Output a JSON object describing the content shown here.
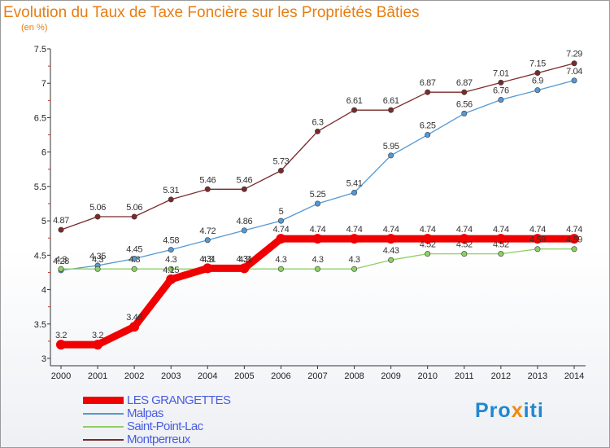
{
  "chart_data": {
    "type": "line",
    "title": "Evolution du Taux de Taxe Foncière sur les Propriétés Bâties",
    "subtitle": "(en %)",
    "xlabel": "",
    "ylabel": "",
    "ylim": [
      3,
      7.5
    ],
    "y_ticks": [
      "3",
      "3.5",
      "4",
      "4.5",
      "5",
      "5.5",
      "6",
      "6.5",
      "7",
      "7.5"
    ],
    "categories": [
      "2000",
      "2001",
      "2002",
      "2003",
      "2004",
      "2005",
      "2006",
      "2007",
      "2008",
      "2009",
      "2010",
      "2011",
      "2012",
      "2013",
      "2014"
    ],
    "series": [
      {
        "name": "Montperreux",
        "color": "#7a2a2a",
        "values": [
          4.87,
          5.06,
          5.06,
          5.31,
          5.46,
          5.46,
          5.73,
          6.3,
          6.61,
          6.61,
          6.87,
          6.87,
          7.01,
          7.15,
          7.29
        ]
      },
      {
        "name": "Malpas",
        "color": "#5598d2",
        "values": [
          4.28,
          4.35,
          4.45,
          4.58,
          4.72,
          4.86,
          5.0,
          5.25,
          5.41,
          5.95,
          6.25,
          6.56,
          6.76,
          6.9,
          7.04
        ]
      },
      {
        "name": "Saint-Point-Lac",
        "color": "#8ed064",
        "values": [
          4.3,
          4.3,
          4.3,
          4.3,
          4.3,
          4.3,
          4.3,
          4.3,
          4.3,
          4.43,
          4.52,
          4.52,
          4.52,
          4.59,
          4.59
        ]
      },
      {
        "name": "LES GRANGETTES",
        "color": "#f00000",
        "values": [
          3.2,
          3.2,
          3.46,
          4.15,
          4.31,
          4.31,
          4.74,
          4.74,
          4.74,
          4.74,
          4.74,
          4.74,
          4.74,
          4.74,
          4.74
        ]
      }
    ],
    "data_labels": {
      "Montperreux": [
        "4.87",
        "5.06",
        "5.06",
        "5.31",
        "5.46",
        "5.46",
        "5.73",
        "6.3",
        "6.61",
        "6.61",
        "6.87",
        "6.87",
        "7.01",
        "7.15",
        "7.29"
      ],
      "Malpas": [
        "4.28",
        "4.35",
        "4.45",
        "4.58",
        "4.72",
        "4.86",
        "5",
        "5.25",
        "5.41",
        "5.95",
        "6.25",
        "6.56",
        "6.76",
        "6.9",
        "7.04"
      ],
      "Saint-Point-Lac": [
        "4.3",
        "4.3",
        "4.3",
        "4.3",
        "4.3",
        "4.3",
        "4.3",
        "4.3",
        "4.3",
        "4.43",
        "4.52",
        "4.52",
        "4.52",
        "4.59",
        "4.59"
      ],
      "LES GRANGETTES": [
        "3.2",
        "3.2",
        "3.46",
        "4.15",
        "4.31",
        "4.31",
        "4.74",
        "4.74",
        "4.74",
        "4.74",
        "4.74",
        "4.74",
        "4.74",
        "4.74",
        "4.74"
      ]
    },
    "legend": [
      {
        "label": "LES GRANGETTES",
        "color": "#f00000",
        "thick": true
      },
      {
        "label": "Malpas",
        "color": "#5598d2",
        "thick": false
      },
      {
        "label": "Saint-Point-Lac",
        "color": "#8ed064",
        "thick": false
      },
      {
        "label": "Montperreux",
        "color": "#7a2a2a",
        "thick": false
      }
    ],
    "legend_position": "bottom-left"
  },
  "logo": {
    "part1": "Pro",
    "part2": "x",
    "part3": "iti"
  }
}
